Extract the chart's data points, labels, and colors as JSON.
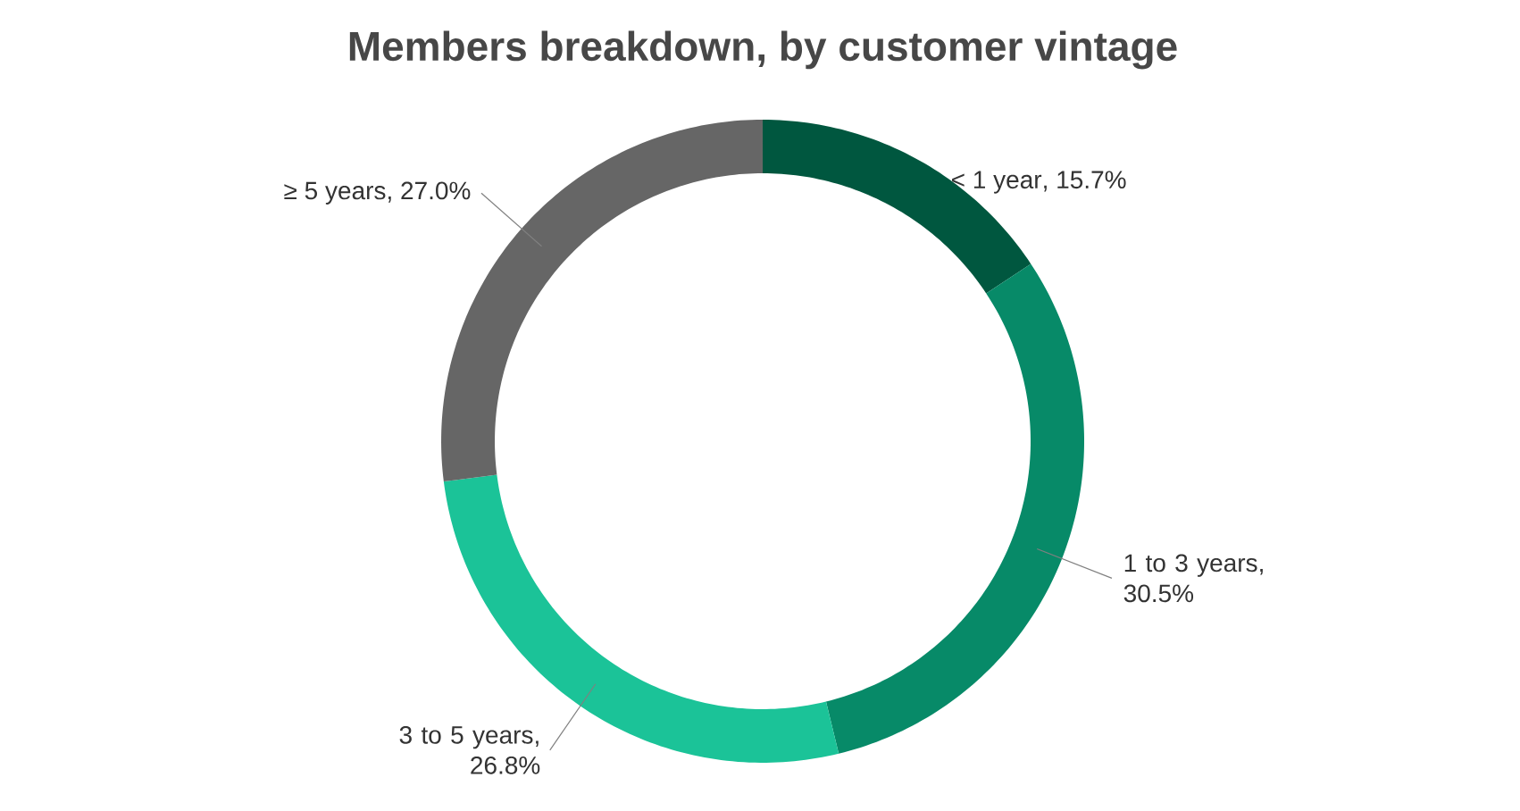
{
  "chart_data": {
    "type": "donut",
    "title": "Members breakdown, by customer vintage",
    "categories": [
      "< 1 year",
      "1 to 3 years",
      "3 to 5 years",
      "≥ 5 years"
    ],
    "values": [
      15.7,
      30.5,
      26.8,
      27.0
    ],
    "value_labels": [
      ", 15.7%",
      ", 30.5%",
      ", 26.8%",
      ", 27.0%"
    ],
    "colors": [
      "#00573f",
      "#078a68",
      "#1bc398",
      "#666666"
    ]
  }
}
